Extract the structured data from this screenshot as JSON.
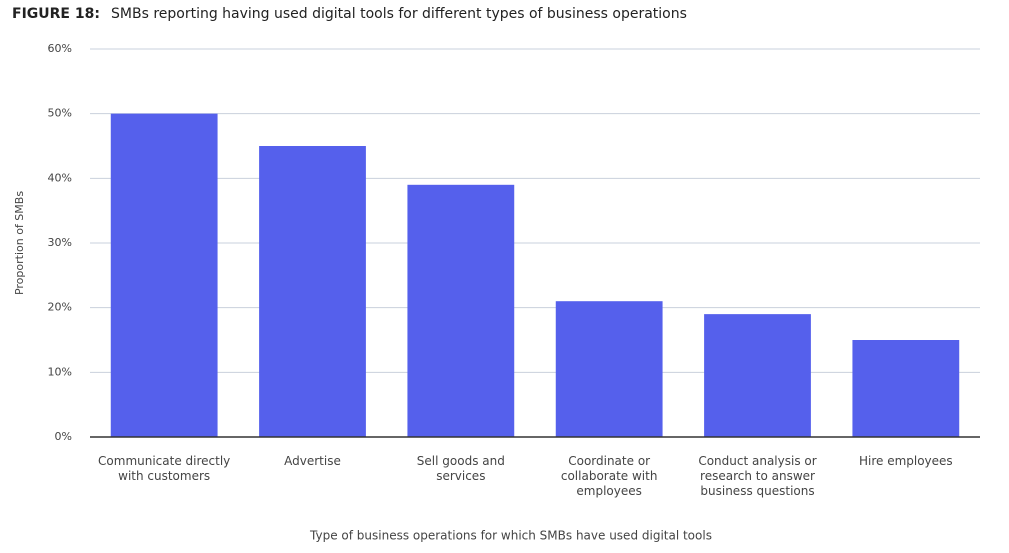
{
  "chart_data": {
    "type": "bar",
    "figure_label": "FIGURE 18:",
    "title": "SMBs reporting having used digital tools for different types of business operations",
    "x_label": "Type of business operations for which SMBs have used digital tools",
    "y_label": "Proportion of SMBs",
    "categories": [
      "Communicate directly\nwith customers",
      "Advertise",
      "Sell goods and\nservices",
      "Coordinate or\ncollaborate with\nemployees",
      "Conduct analysis or\nresearch to answer\nbusiness questions",
      "Hire employees"
    ],
    "values": [
      50,
      45,
      39,
      21,
      19,
      15
    ],
    "color": "#5560ec",
    "ylim": [
      0,
      60
    ],
    "yticks": [
      {
        "value": 0,
        "label": "0%"
      },
      {
        "value": 10,
        "label": "10%"
      },
      {
        "value": 20,
        "label": "20%"
      },
      {
        "value": 30,
        "label": "30%"
      },
      {
        "value": 40,
        "label": "40%"
      },
      {
        "value": 50,
        "label": "50%"
      },
      {
        "value": 60,
        "label": "60%"
      }
    ],
    "grid": true
  }
}
